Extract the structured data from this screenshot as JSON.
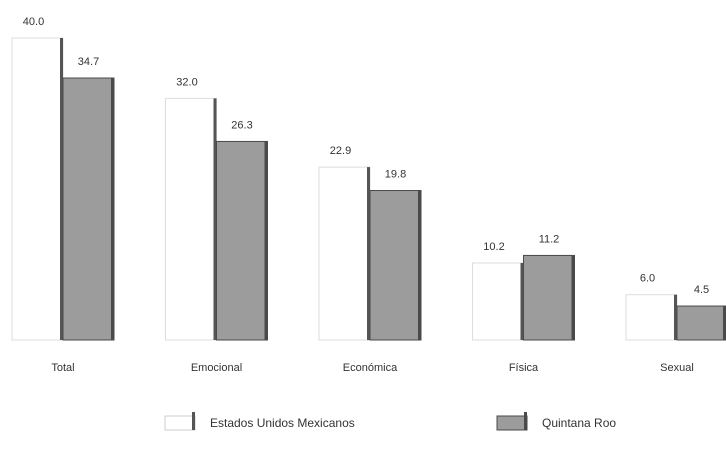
{
  "chart_data": {
    "type": "bar",
    "categories": [
      "Total",
      "Emocional",
      "Económica",
      "Física",
      "Sexual"
    ],
    "series": [
      {
        "name": "Estados Unidos Mexicanos",
        "color": "#ffffff",
        "edge": "#555555",
        "values": [
          40.0,
          32.0,
          22.9,
          10.2,
          6.0
        ],
        "value_labels": [
          "40.0",
          "32.0",
          "22.9",
          "10.2",
          "6.0"
        ]
      },
      {
        "name": "Quintana Roo",
        "color": "#9c9c9c",
        "edge": "#4a4a4a",
        "values": [
          34.7,
          26.3,
          19.8,
          11.2,
          4.5
        ],
        "value_labels": [
          "34.7",
          "26.3",
          "19.8",
          "11.2",
          "4.5"
        ]
      }
    ]
  }
}
